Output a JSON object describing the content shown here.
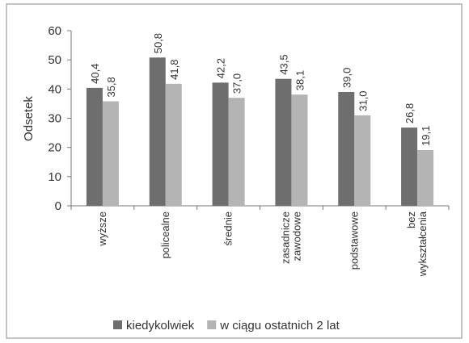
{
  "chart_data": {
    "type": "bar",
    "ylabel": "Odsetek",
    "categories": [
      "wyższe",
      "policealne",
      "średnie",
      "zasadnicze zawodowe",
      "podstawowe",
      "bez wykształcenia"
    ],
    "series": [
      {
        "name": "kiedykolwiek",
        "color": "#6e6e6e",
        "values": [
          40.4,
          50.8,
          42.2,
          43.5,
          39.0,
          26.8
        ],
        "value_labels": [
          "40,4",
          "50,8",
          "42,2",
          "43,5",
          "39,0",
          "26,8"
        ]
      },
      {
        "name": "w ciągu ostatnich 2 lat",
        "color": "#b4b4b4",
        "values": [
          35.8,
          41.8,
          37.0,
          38.1,
          31.0,
          19.1
        ],
        "value_labels": [
          "35,8",
          "41,8",
          "37,0",
          "38,1",
          "31,0",
          "19,1"
        ]
      }
    ],
    "ylim": [
      0,
      60
    ],
    "yticks": [
      0,
      10,
      20,
      30,
      40,
      50,
      60
    ],
    "legend": "bottom"
  }
}
